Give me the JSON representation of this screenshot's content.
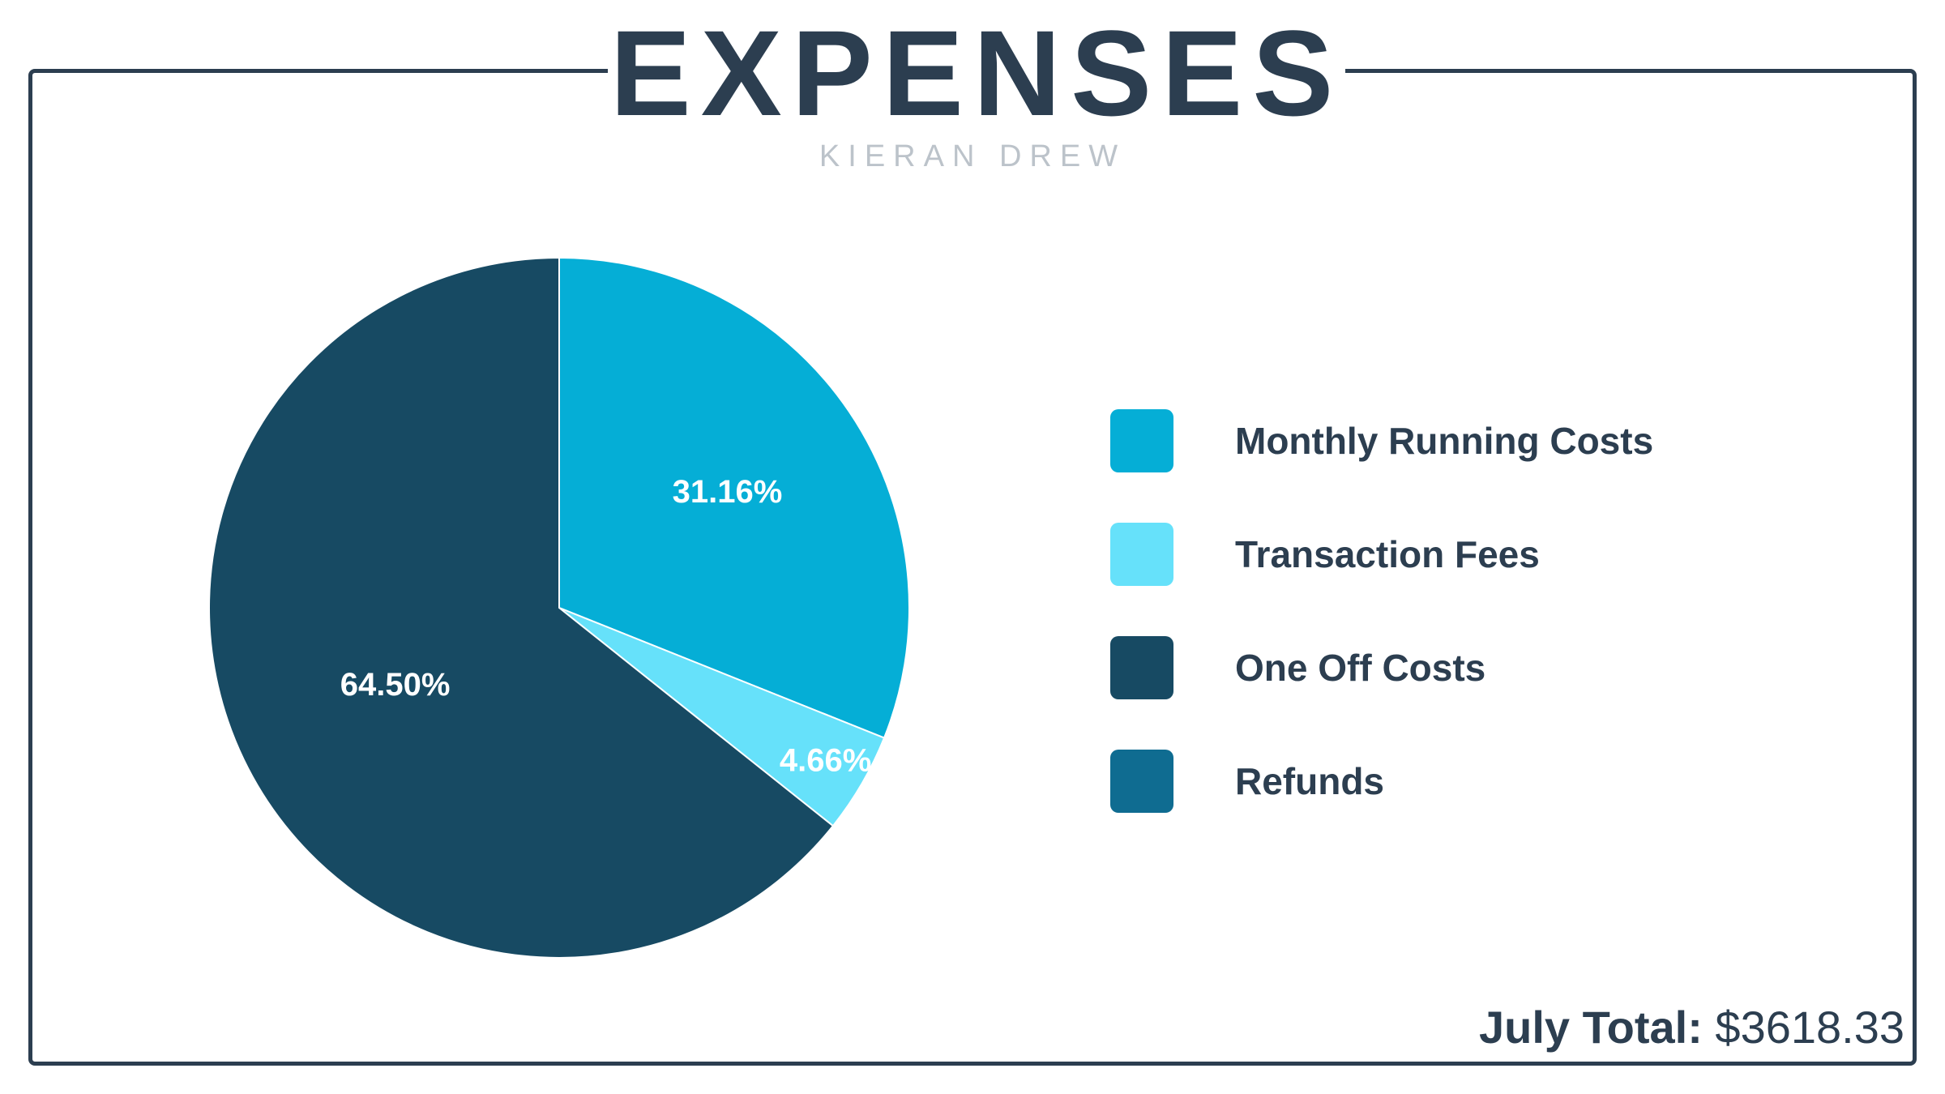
{
  "title": "EXPENSES",
  "subtitle": "KIERAN DREW",
  "chart_data": {
    "type": "pie",
    "title": "",
    "slices": [
      {
        "label": "Monthly Running Costs",
        "value": 31.16,
        "display": "31.16%",
        "color": "#05aed6"
      },
      {
        "label": "Transaction Fees",
        "value": 4.66,
        "display": "4.66%",
        "color": "#66e1fa"
      },
      {
        "label": "One Off Costs",
        "value": 64.5,
        "display": "64.50%",
        "color": "#174a63"
      },
      {
        "label": "Refunds",
        "value": 0,
        "display": "",
        "color": "#0f6c91"
      }
    ],
    "legend_position": "right"
  },
  "legend": [
    {
      "label": "Monthly Running Costs",
      "color": "#05aed6"
    },
    {
      "label": "Transaction Fees",
      "color": "#66e1fa"
    },
    {
      "label": "One Off Costs",
      "color": "#174a63"
    },
    {
      "label": "Refunds",
      "color": "#0f6c91"
    }
  ],
  "total": {
    "label": "July Total:",
    "value": "$3618.33"
  }
}
